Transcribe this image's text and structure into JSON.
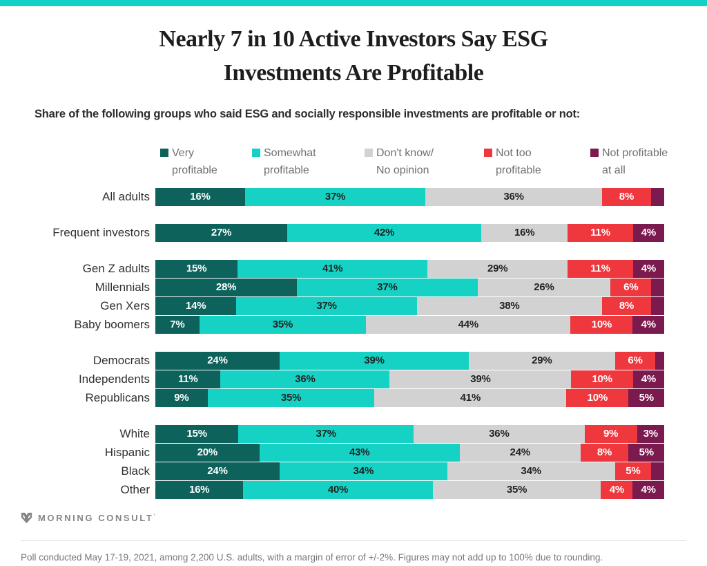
{
  "accent_bar_color": "#12d2c5",
  "title": "Nearly 7 in 10 Active Investors Say ESG\nInvestments Are Profitable",
  "subtitle": "Share of the following groups who said ESG and socially responsible investments are profitable or not:",
  "legend": [
    {
      "label": "Very\nprofitable",
      "color": "#0e625c"
    },
    {
      "label": "Somewhat\nprofitable",
      "color": "#16d2c4"
    },
    {
      "label": "Don't know/\nNo opinion",
      "color": "#d2d2d2"
    },
    {
      "label": "Not too\nprofitable",
      "color": "#ee383e"
    },
    {
      "label": "Not profitable\nat all",
      "color": "#7b1a4e"
    }
  ],
  "chart_data": {
    "type": "bar",
    "orientation": "horizontal-stacked",
    "title": "Nearly 7 in 10 Active Investors Say ESG Investments Are Profitable",
    "subtitle": "Share of the following groups who said ESG and socially responsible investments are profitable or not:",
    "unit": "percent",
    "xlim": [
      0,
      100
    ],
    "series_names": [
      "Very profitable",
      "Somewhat profitable",
      "Don't know/No opinion",
      "Not too profitable",
      "Not profitable at all"
    ],
    "series_colors": [
      "#0e625c",
      "#16d2c4",
      "#d2d2d2",
      "#ee383e",
      "#7b1a4e"
    ],
    "series_label_colors": [
      "#ffffff",
      "#1f2220",
      "#1f2220",
      "#ffffff",
      "#ffffff"
    ],
    "groups": [
      {
        "rows": [
          {
            "category": "All adults",
            "values": [
              16,
              37,
              36,
              8,
              3
            ],
            "labels": [
              "16%",
              "37%",
              "36%",
              "8%",
              ""
            ]
          }
        ]
      },
      {
        "rows": [
          {
            "category": "Frequent investors",
            "values": [
              27,
              42,
              16,
              11,
              4
            ],
            "labels": [
              "27%",
              "42%",
              "16%",
              "11%",
              "4%"
            ]
          }
        ]
      },
      {
        "rows": [
          {
            "category": "Gen Z adults",
            "values": [
              15,
              41,
              29,
              11,
              4
            ],
            "labels": [
              "15%",
              "41%",
              "29%",
              "11%",
              "4%"
            ]
          },
          {
            "category": "Millennials",
            "values": [
              28,
              37,
              26,
              6,
              3
            ],
            "labels": [
              "28%",
              "37%",
              "26%",
              "6%",
              ""
            ]
          },
          {
            "category": "Gen Xers",
            "values": [
              14,
              37,
              38,
              8,
              3
            ],
            "labels": [
              "14%",
              "37%",
              "38%",
              "8%",
              ""
            ]
          },
          {
            "category": "Baby boomers",
            "values": [
              7,
              35,
              44,
              10,
              4
            ],
            "labels": [
              "7%",
              "35%",
              "44%",
              "10%",
              "4%"
            ]
          }
        ]
      },
      {
        "rows": [
          {
            "category": "Democrats",
            "values": [
              24,
              39,
              29,
              6,
              2
            ],
            "labels": [
              "24%",
              "39%",
              "29%",
              "6%",
              ""
            ]
          },
          {
            "category": "Independents",
            "values": [
              11,
              36,
              39,
              10,
              4
            ],
            "labels": [
              "11%",
              "36%",
              "39%",
              "10%",
              "4%"
            ]
          },
          {
            "category": "Republicans",
            "values": [
              9,
              35,
              41,
              10,
              5
            ],
            "labels": [
              "9%",
              "35%",
              "41%",
              "10%",
              "5%"
            ]
          }
        ]
      },
      {
        "rows": [
          {
            "category": "White",
            "values": [
              15,
              37,
              36,
              9,
              3
            ],
            "labels": [
              "15%",
              "37%",
              "36%",
              "9%",
              "3%"
            ]
          },
          {
            "category": "Hispanic",
            "values": [
              20,
              43,
              24,
              8,
              5
            ],
            "labels": [
              "20%",
              "43%",
              "24%",
              "8%",
              "5%"
            ]
          },
          {
            "category": "Black",
            "values": [
              24,
              34,
              34,
              5,
              3
            ],
            "labels": [
              "24%",
              "34%",
              "34%",
              "5%",
              ""
            ]
          },
          {
            "category": "Other",
            "values": [
              16,
              40,
              35,
              4,
              4
            ],
            "labels": [
              "16%",
              "40%",
              "35%",
              "4%",
              "4%"
            ]
          }
        ]
      }
    ]
  },
  "logo": {
    "text": "MORNING CONSULT",
    "trademark": "'"
  },
  "footer": "Poll conducted May 17-19, 2021, among 2,200 U.S. adults, with a margin of error of +/-2%. Figures may not add up to 100% due to rounding."
}
